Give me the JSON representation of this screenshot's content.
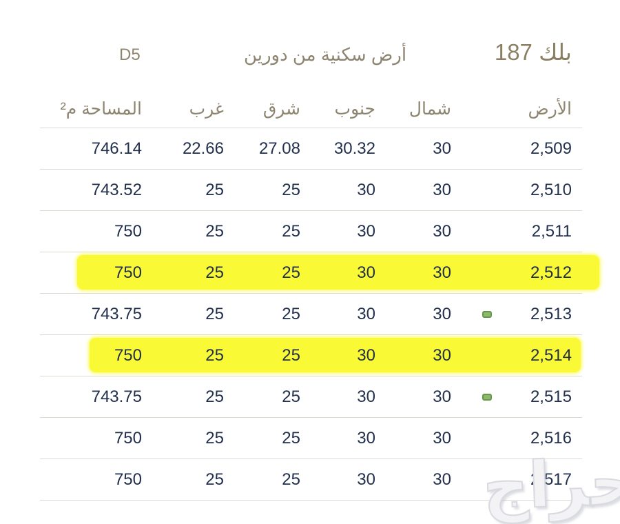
{
  "header": {
    "block_title": "بلك 187",
    "subtitle": "أرض سكنية من دورين",
    "plan_code": "D5"
  },
  "table": {
    "columns": [
      {
        "key": "land",
        "label": "الأرض"
      },
      {
        "key": "north",
        "label": "شمال"
      },
      {
        "key": "south",
        "label": "جنوب"
      },
      {
        "key": "east",
        "label": "شرق"
      },
      {
        "key": "west",
        "label": "غرب"
      },
      {
        "key": "area",
        "label": "المساحة م²"
      }
    ],
    "rows": [
      {
        "land": "2,509",
        "north": "30",
        "south": "30.32",
        "east": "27.08",
        "west": "22.66",
        "area": "746.14",
        "highlighted": false,
        "dot": false
      },
      {
        "land": "2,510",
        "north": "30",
        "south": "30",
        "east": "25",
        "west": "25",
        "area": "743.52",
        "highlighted": false,
        "dot": false
      },
      {
        "land": "2,511",
        "north": "30",
        "south": "30",
        "east": "25",
        "west": "25",
        "area": "750",
        "highlighted": false,
        "dot": false
      },
      {
        "land": "2,512",
        "north": "30",
        "south": "30",
        "east": "25",
        "west": "25",
        "area": "750",
        "highlighted": true,
        "dot": false
      },
      {
        "land": "2,513",
        "north": "30",
        "south": "30",
        "east": "25",
        "west": "25",
        "area": "743.75",
        "highlighted": false,
        "dot": true
      },
      {
        "land": "2,514",
        "north": "30",
        "south": "30",
        "east": "25",
        "west": "25",
        "area": "750",
        "highlighted": true,
        "dot": false
      },
      {
        "land": "2,515",
        "north": "30",
        "south": "30",
        "east": "25",
        "west": "25",
        "area": "743.75",
        "highlighted": false,
        "dot": true
      },
      {
        "land": "2,516",
        "north": "30",
        "south": "30",
        "east": "25",
        "west": "25",
        "area": "750",
        "highlighted": false,
        "dot": false
      },
      {
        "land": "2,517",
        "north": "30",
        "south": "30",
        "east": "25",
        "west": "25",
        "area": "750",
        "highlighted": false,
        "dot": false
      }
    ]
  },
  "watermark": {
    "text": "حراج"
  },
  "colors": {
    "accent_tan": "#8e8570",
    "title_tan": "#8a7f63",
    "text_dark": "#22304d",
    "highlight_yellow": "#f9f935",
    "dot_green_fill": "#8cba6c",
    "dot_green_border": "#67974a",
    "row_line": "#ddd9d0"
  }
}
